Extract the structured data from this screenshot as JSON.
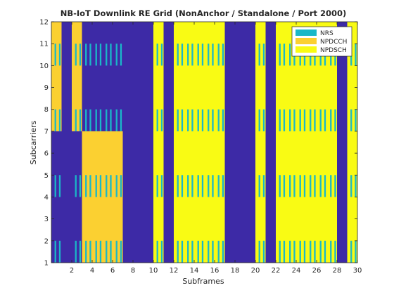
{
  "chart_data": {
    "type": "heatmap",
    "title": "NB-IoT Downlink RE Grid (NonAnchor / Standalone / Port 2000)",
    "xlabel": "Subframes",
    "ylabel": "Subcarriers",
    "xlim": [
      0,
      30
    ],
    "ylim": [
      1,
      12
    ],
    "xticks": [
      2,
      4,
      6,
      8,
      10,
      12,
      14,
      16,
      18,
      20,
      22,
      24,
      26,
      28,
      30
    ],
    "yticks": [
      1,
      2,
      3,
      4,
      5,
      6,
      7,
      8,
      9,
      10,
      11,
      12
    ],
    "colors": {
      "empty": "#3d2aa6",
      "NRS": "#1ab8c8",
      "NPDCCH": "#fbd031",
      "NPDSCH": "#f9fb14"
    },
    "legend": {
      "position": "top-right",
      "entries": [
        "NRS",
        "NPDCCH",
        "NPDSCH"
      ]
    },
    "regions": [
      {
        "type": "NPDCCH",
        "x": [
          0,
          1
        ],
        "y": [
          7,
          12
        ]
      },
      {
        "type": "NPDCCH",
        "x": [
          2,
          3
        ],
        "y": [
          7,
          12
        ]
      },
      {
        "type": "NPDCCH",
        "x": [
          3,
          7
        ],
        "y": [
          1,
          7
        ]
      },
      {
        "type": "NPDSCH",
        "x": [
          10,
          11
        ],
        "y": [
          1,
          12
        ]
      },
      {
        "type": "NPDSCH",
        "x": [
          12,
          17
        ],
        "y": [
          1,
          12
        ]
      },
      {
        "type": "NPDSCH",
        "x": [
          20,
          21
        ],
        "y": [
          1,
          12
        ]
      },
      {
        "type": "NPDSCH",
        "x": [
          22,
          28
        ],
        "y": [
          1,
          12
        ]
      },
      {
        "type": "NPDSCH",
        "x": [
          29,
          30
        ],
        "y": [
          1,
          12
        ]
      }
    ],
    "nrs_subframes": [
      0,
      2,
      3,
      4,
      5,
      6,
      10,
      12,
      13,
      14,
      15,
      16,
      20,
      22,
      23,
      24,
      25,
      26,
      27,
      29
    ],
    "nrs_rows": [
      1.5,
      4.5,
      7.5,
      10.5
    ],
    "nrs_symbol_offsets": [
      0.36,
      0.43,
      0.79,
      0.86
    ]
  }
}
